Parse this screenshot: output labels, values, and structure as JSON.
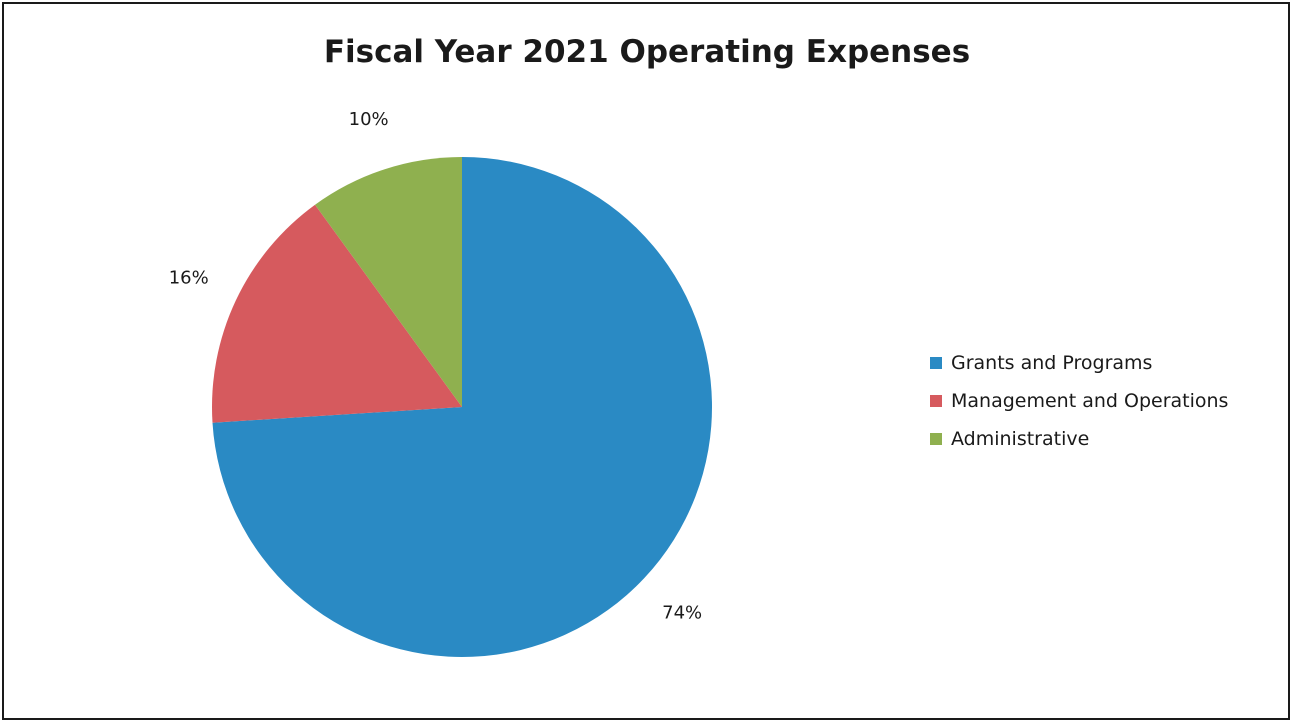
{
  "chart_data": {
    "type": "pie",
    "title": "Fiscal Year 2021 Operating Expenses",
    "slices": [
      {
        "label": "Grants and Programs",
        "value": 74,
        "display": "74%",
        "color": "#2A8AC4"
      },
      {
        "label": "Management and Operations",
        "value": 16,
        "display": "16%",
        "color": "#D65A5E"
      },
      {
        "label": "Administrative",
        "value": 10,
        "display": "10%",
        "color": "#8FB04F"
      }
    ],
    "start": "12 o'clock",
    "direction": "clockwise",
    "legend_position": "right"
  }
}
